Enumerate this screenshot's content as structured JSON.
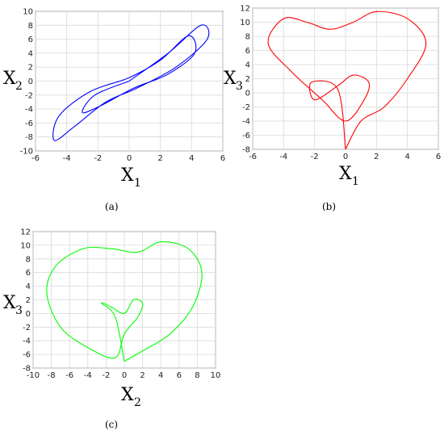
{
  "panels": [
    {
      "caption": "(a)",
      "xlabel": "X",
      "xlabel_sub": "1",
      "ylabel": "X",
      "ylabel_sub": "2",
      "color": "#0000ff",
      "xticks": [
        -6,
        -4,
        -2,
        0,
        2,
        4,
        6
      ],
      "yticks": [
        -10,
        -8,
        -6,
        -4,
        -2,
        0,
        2,
        4,
        6,
        8,
        10
      ]
    },
    {
      "caption": "(b)",
      "xlabel": "X",
      "xlabel_sub": "1",
      "ylabel": "X",
      "ylabel_sub": "3",
      "color": "#ff0000",
      "xticks": [
        -6,
        -4,
        -2,
        0,
        2,
        4,
        6
      ],
      "yticks": [
        -8,
        -6,
        -4,
        -2,
        0,
        2,
        4,
        6,
        8,
        10,
        12
      ]
    },
    {
      "caption": "(c)",
      "xlabel": "X",
      "xlabel_sub": "2",
      "ylabel": "X",
      "ylabel_sub": "3",
      "color": "#00ff00",
      "xticks": [
        -10,
        -8,
        -6,
        -4,
        -2,
        0,
        2,
        4,
        6,
        8,
        10
      ],
      "yticks": [
        -8,
        -6,
        -4,
        -2,
        0,
        2,
        4,
        6,
        8,
        10,
        12
      ]
    }
  ],
  "chart_data": [
    {
      "type": "line",
      "title": "",
      "xlabel": "X1",
      "ylabel": "X2",
      "xlim": [
        -6,
        6
      ],
      "ylim": [
        -10,
        10
      ],
      "grid": true,
      "series": [
        {
          "color": "#0000ff",
          "x": [
            0.0,
            2.5,
            4.6,
            5.0,
            3.0,
            0.5,
            -1.5,
            -3.5,
            -4.8,
            -4.5,
            -2.5,
            0.0,
            2.0,
            3.8,
            4.2,
            2.5,
            0.3,
            -1.8,
            -3.0,
            -2.2,
            0.0
          ],
          "y": [
            0.0,
            4.0,
            8.0,
            6.0,
            2.0,
            -1.0,
            -3.0,
            -6.5,
            -8.5,
            -5.0,
            -1.5,
            0.5,
            3.0,
            6.5,
            4.0,
            1.0,
            -1.0,
            -3.5,
            -4.5,
            -2.0,
            0.0
          ]
        }
      ]
    },
    {
      "type": "line",
      "title": "",
      "xlabel": "X1",
      "ylabel": "X3",
      "xlim": [
        -6,
        6
      ],
      "ylim": [
        -8,
        12
      ],
      "grid": true,
      "series": [
        {
          "color": "#ff0000",
          "x": [
            0.0,
            1.0,
            2.5,
            4.0,
            5.2,
            4.0,
            2.0,
            0.5,
            -1.0,
            -2.5,
            -4.0,
            -5.0,
            -3.5,
            -1.5,
            0.0,
            1.2,
            1.5,
            0.5,
            -0.5,
            -2.0,
            -2.2,
            -0.5,
            0.0
          ],
          "y": [
            -8.0,
            -4.0,
            -2.0,
            2.0,
            7.0,
            10.5,
            11.5,
            10.0,
            9.0,
            10.0,
            10.5,
            7.0,
            3.0,
            -1.0,
            -4.0,
            -1.0,
            1.5,
            2.5,
            1.0,
            -1.0,
            1.5,
            0.5,
            -8.0
          ]
        }
      ]
    },
    {
      "type": "line",
      "title": "",
      "xlabel": "X2",
      "ylabel": "X3",
      "xlim": [
        -10,
        10
      ],
      "ylim": [
        -8,
        12
      ],
      "grid": true,
      "series": [
        {
          "color": "#00ff00",
          "x": [
            0.0,
            2.0,
            5.0,
            7.5,
            8.5,
            7.0,
            4.0,
            1.5,
            -1.5,
            -4.5,
            -7.5,
            -8.5,
            -7.0,
            -4.0,
            -1.0,
            0.0,
            1.5,
            2.0,
            1.0,
            0.0,
            -1.5,
            -2.5,
            -1.0,
            0.0
          ],
          "y": [
            -7.0,
            -5.5,
            -3.0,
            1.0,
            6.0,
            9.5,
            10.5,
            9.0,
            9.5,
            9.5,
            7.0,
            3.0,
            -2.0,
            -5.0,
            -6.5,
            -3.0,
            -0.5,
            1.5,
            2.0,
            0.0,
            1.0,
            1.5,
            -0.5,
            -7.0
          ]
        }
      ]
    }
  ]
}
